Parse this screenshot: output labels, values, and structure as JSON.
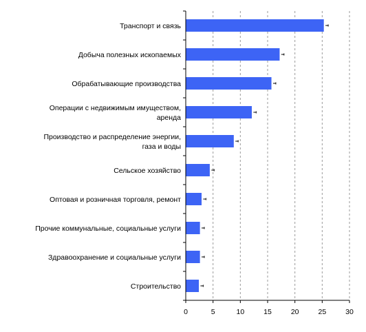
{
  "chart_data": {
    "type": "bar",
    "orientation": "horizontal",
    "title": "",
    "xlabel": "",
    "ylabel": "",
    "categories": [
      [
        "Транспорт и связь"
      ],
      [
        "Добыча полезных ископаемых"
      ],
      [
        "Обрабатывающие производства"
      ],
      [
        "Операции с недвижимым имуществом,",
        "аренда"
      ],
      [
        "Производство и распределение энергии,",
        "газа и воды"
      ],
      [
        "Сельское хозяйство"
      ],
      [
        "Оптовая и розничная торговля, ремонт"
      ],
      [
        "Прочие коммунальные, социальные услуги"
      ],
      [
        "Здравоохранение и социальные услуги"
      ],
      [
        "Строительство"
      ]
    ],
    "values": [
      25.3,
      17.2,
      15.7,
      12.1,
      8.8,
      4.4,
      2.9,
      2.6,
      2.6,
      2.4
    ],
    "error_bar_extent": [
      0.5,
      0.5,
      0.5,
      0.5,
      0.5,
      0.5,
      0.5,
      0.5,
      0.5,
      0.5
    ],
    "xlim": [
      0,
      30
    ],
    "xticks": [
      0,
      5,
      10,
      15,
      20,
      25,
      30
    ],
    "grid": "vertical dashed",
    "legend": "none",
    "colors": {
      "bar": "#3d64f5",
      "grid": "#9a9a9a",
      "axis": "#000000"
    }
  }
}
